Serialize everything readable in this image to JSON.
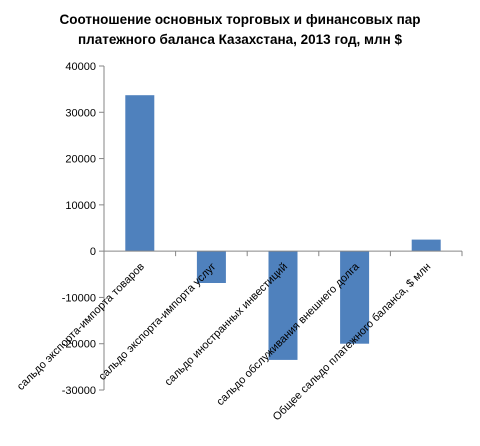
{
  "chart_data": {
    "type": "bar",
    "title_lines": [
      "Соотношение основных торговых и финансовых пар",
      "платежного баланса Казахстана, 2013 год, млн $"
    ],
    "categories": [
      "сальдо экспорта-импорта товаров",
      "сальдо экспорта-импорта услуг",
      "сальдо иностранных инвестиций",
      "сальдо обслуживания внешнего долга",
      "Общее сальдо платежного баланса, $ млн"
    ],
    "values": [
      33700,
      -6900,
      -23500,
      -20000,
      2500
    ],
    "yticks": [
      "40000",
      "30000",
      "20000",
      "10000",
      "0",
      "-10000",
      "-20000",
      "-30000"
    ],
    "ylim": [
      -30000,
      40000
    ],
    "bar_color": "#4f81bd",
    "grid": false,
    "legend": "none"
  }
}
